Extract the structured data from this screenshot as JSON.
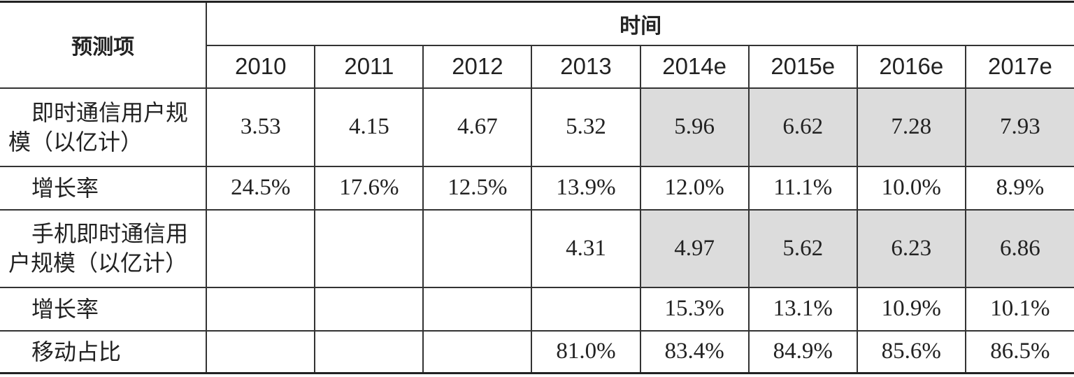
{
  "header": {
    "row_label": "预测项",
    "group": "时间",
    "years": [
      "2010",
      "2011",
      "2012",
      "2013",
      "2014e",
      "2015e",
      "2016e",
      "2017e"
    ]
  },
  "rows": [
    {
      "label": "即时通信用户规模（以亿计）",
      "cells": [
        "3.53",
        "4.15",
        "4.67",
        "5.32",
        "5.96",
        "6.62",
        "7.28",
        "7.93"
      ]
    },
    {
      "label": "增长率",
      "cells": [
        "24.5%",
        "17.6%",
        "12.5%",
        "13.9%",
        "12.0%",
        "11.1%",
        "10.0%",
        "8.9%"
      ]
    },
    {
      "label": "手机即时通信用户规模（以亿计）",
      "cells": [
        null,
        null,
        null,
        "4.31",
        "4.97",
        "5.62",
        "6.23",
        "6.86"
      ]
    },
    {
      "label": "增长率",
      "cells": [
        null,
        null,
        null,
        null,
        "15.3%",
        "13.1%",
        "10.9%",
        "10.1%"
      ]
    },
    {
      "label": "移动占比",
      "cells": [
        null,
        null,
        null,
        "81.0%",
        "83.4%",
        "84.9%",
        "85.6%",
        "86.5%"
      ]
    }
  ]
}
